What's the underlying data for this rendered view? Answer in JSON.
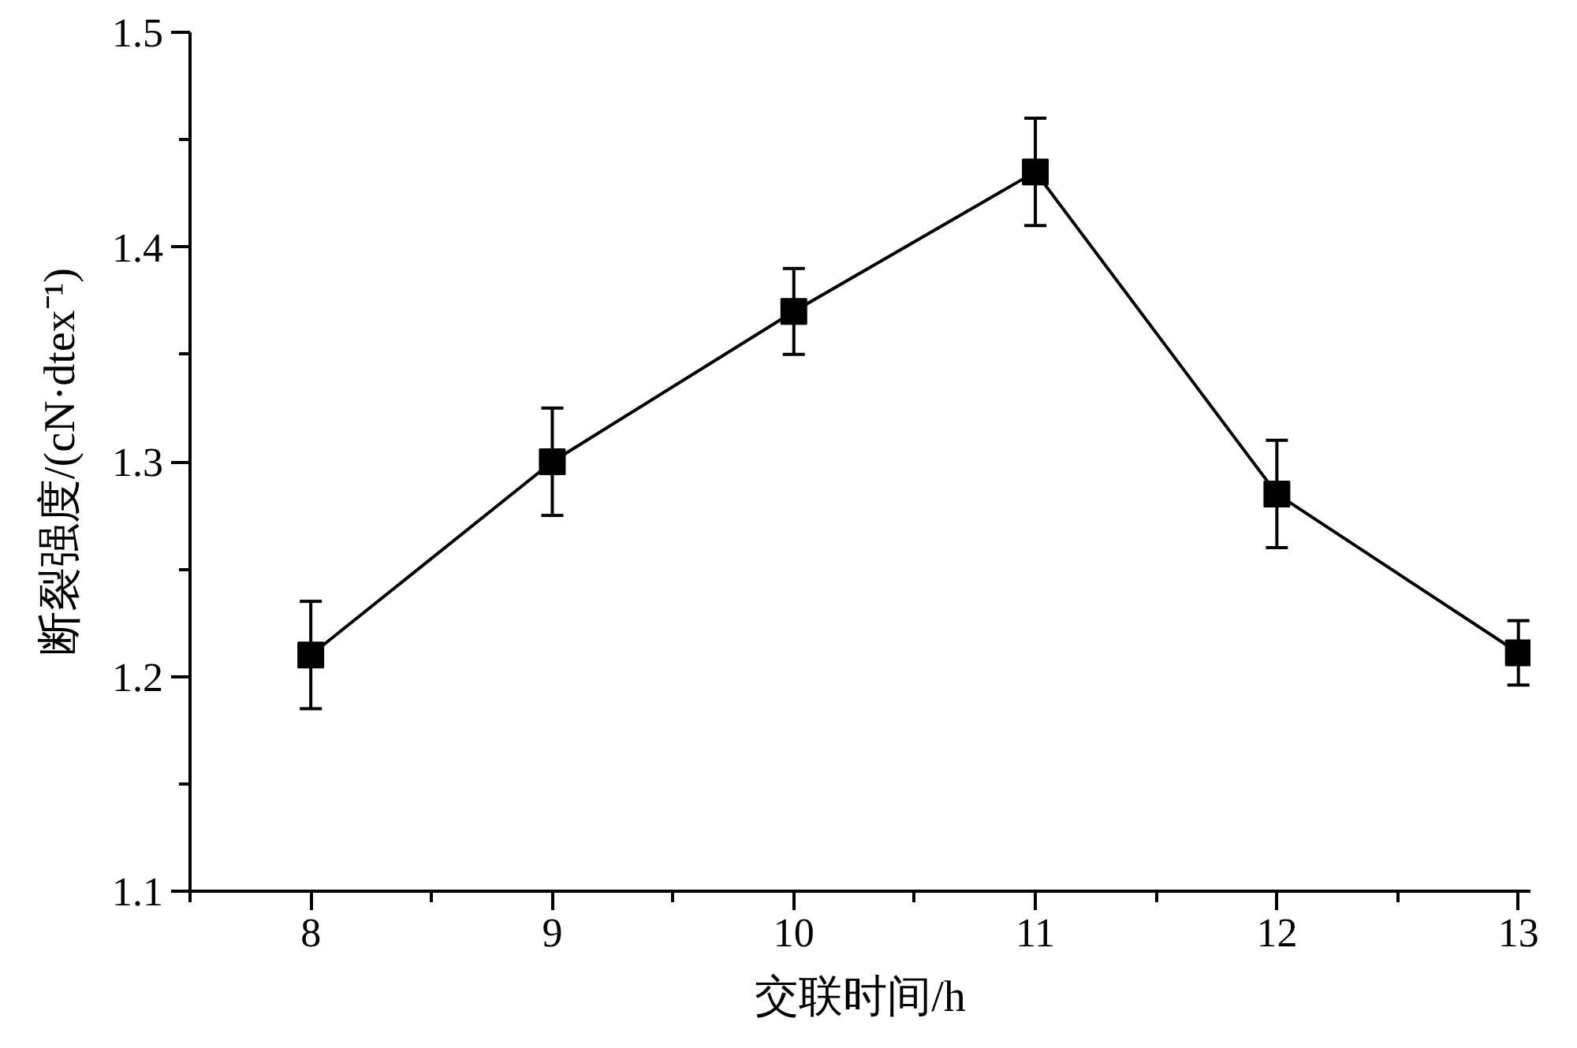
{
  "chart_data": {
    "type": "line",
    "xlabel": "交联时间/h",
    "ylabel": "断裂强度/(cN·dtex⁻¹)",
    "x": [
      8,
      9,
      10,
      11,
      12,
      13
    ],
    "series": [
      {
        "color": "#000000",
        "values": [
          1.21,
          1.3,
          1.37,
          1.435,
          1.285,
          1.211
        ],
        "errors": [
          0.025,
          0.025,
          0.02,
          0.025,
          0.025,
          0.015
        ]
      }
    ],
    "xlim": [
      7.5,
      13.05
    ],
    "ylim": [
      1.1,
      1.5
    ],
    "xticks": [
      {
        "value": 7.5,
        "label": null
      },
      8,
      {
        "value": 8.5,
        "label": null
      },
      9,
      {
        "value": 9.5,
        "label": null
      },
      10,
      {
        "value": 10.5,
        "label": null
      },
      11,
      {
        "value": 11.5,
        "label": null
      },
      12,
      {
        "value": 12.5,
        "label": null
      },
      13
    ],
    "yticks": [
      1.1,
      {
        "value": 1.15,
        "label": null
      },
      1.2,
      {
        "value": 1.25,
        "label": null
      },
      1.3,
      {
        "value": 1.35,
        "label": null
      },
      1.4,
      {
        "value": 1.45,
        "label": null
      },
      1.5
    ],
    "grid": false,
    "marker": "square",
    "line_style": "solid"
  }
}
